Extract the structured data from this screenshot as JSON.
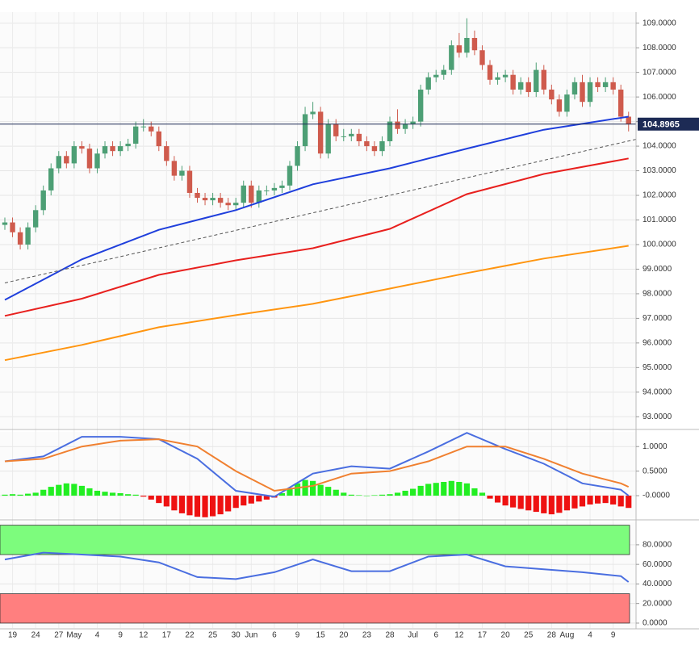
{
  "chart_data": [
    {
      "type": "candlestick",
      "open": [
        100.8,
        100.9,
        100.5,
        100.0,
        100.7,
        101.4,
        102.2,
        103.1,
        103.6,
        103.3,
        104.0,
        103.9,
        103.1,
        103.7,
        104.0,
        103.8,
        104.0,
        104.1,
        104.8,
        104.8,
        104.6,
        104.0,
        103.4,
        102.8,
        103.0,
        102.1,
        101.9,
        101.8,
        101.9,
        101.7,
        101.6,
        101.7,
        102.4,
        101.7,
        102.2,
        102.2,
        102.3,
        102.4,
        103.2,
        104.0,
        105.3,
        105.4,
        103.7,
        104.9,
        104.4,
        104.4,
        104.5,
        104.2,
        104.0,
        103.8,
        104.2,
        105.0,
        104.7,
        104.9,
        105.0,
        106.3,
        106.8,
        106.9,
        107.1,
        108.1,
        107.8,
        108.4,
        107.9,
        107.3,
        106.7,
        106.8,
        106.9,
        106.3,
        106.6,
        106.2,
        107.1,
        106.3,
        105.9,
        105.4,
        106.1,
        106.6,
        105.8,
        106.6,
        106.4,
        106.6,
        106.3,
        105.2
      ],
      "high": [
        101.1,
        101.1,
        100.7,
        100.9,
        101.6,
        102.4,
        103.3,
        103.8,
        103.8,
        104.2,
        104.2,
        104.1,
        103.9,
        104.2,
        104.2,
        104.2,
        104.3,
        105.0,
        105.1,
        105.0,
        104.8,
        104.2,
        103.6,
        103.2,
        103.2,
        102.3,
        102.1,
        102.1,
        102.1,
        101.9,
        101.9,
        102.6,
        102.6,
        102.4,
        102.4,
        102.5,
        102.6,
        103.4,
        104.2,
        105.6,
        105.8,
        105.6,
        105.1,
        105.1,
        104.7,
        104.7,
        104.7,
        104.4,
        104.2,
        104.4,
        105.2,
        105.5,
        105.1,
        105.2,
        106.5,
        107.0,
        107.1,
        107.3,
        108.3,
        108.6,
        109.2,
        108.7,
        108.1,
        107.5,
        107.0,
        107.1,
        107.1,
        106.8,
        106.8,
        107.4,
        107.3,
        106.5,
        106.1,
        106.3,
        106.8,
        106.9,
        106.8,
        106.8,
        106.8,
        106.8,
        106.5,
        105.4
      ],
      "low": [
        100.6,
        100.3,
        99.8,
        99.8,
        100.5,
        101.2,
        102.0,
        102.9,
        103.1,
        103.1,
        103.7,
        102.9,
        102.9,
        103.5,
        103.6,
        103.6,
        103.8,
        103.9,
        104.6,
        104.4,
        103.8,
        103.2,
        102.6,
        102.6,
        101.9,
        101.7,
        101.6,
        101.6,
        101.5,
        101.4,
        101.4,
        101.5,
        101.5,
        101.5,
        102.0,
        102.0,
        102.1,
        102.2,
        103.0,
        103.8,
        105.1,
        103.5,
        103.5,
        104.2,
        104.2,
        104.2,
        104.0,
        103.8,
        103.6,
        103.6,
        104.0,
        104.5,
        104.5,
        104.7,
        104.8,
        106.1,
        106.6,
        106.7,
        106.9,
        107.6,
        107.6,
        107.7,
        107.1,
        106.5,
        106.5,
        106.6,
        106.1,
        106.1,
        106.0,
        106.0,
        106.1,
        105.7,
        105.2,
        105.2,
        105.9,
        105.6,
        105.6,
        106.2,
        106.2,
        106.1,
        105.0,
        104.6
      ],
      "close": [
        100.9,
        100.5,
        100.0,
        100.7,
        101.4,
        102.2,
        103.1,
        103.6,
        103.3,
        104.0,
        103.9,
        103.1,
        103.7,
        104.0,
        103.8,
        104.0,
        104.1,
        104.8,
        104.8,
        104.6,
        104.0,
        103.4,
        102.8,
        103.0,
        102.1,
        101.9,
        101.8,
        101.9,
        101.7,
        101.6,
        101.7,
        102.4,
        101.7,
        102.2,
        102.2,
        102.3,
        102.4,
        103.2,
        104.0,
        105.3,
        105.4,
        103.7,
        104.9,
        104.4,
        104.4,
        104.5,
        104.2,
        104.0,
        103.8,
        104.2,
        105.0,
        104.7,
        104.9,
        105.0,
        106.3,
        106.8,
        106.9,
        107.1,
        108.1,
        107.8,
        108.4,
        107.9,
        107.3,
        106.7,
        106.8,
        106.9,
        106.3,
        106.6,
        106.2,
        107.1,
        106.3,
        105.9,
        105.4,
        106.1,
        106.6,
        105.8,
        106.6,
        106.4,
        106.6,
        106.3,
        105.2,
        104.9
      ],
      "up_color": "#4d9f75",
      "down_color": "#cf5b4d",
      "lines": [
        {
          "color": "#1f3fdc",
          "x": [
            0,
            10,
            20,
            30,
            40,
            50,
            60,
            70,
            81
          ],
          "values": [
            97.75,
            99.4,
            100.6,
            101.4,
            102.45,
            103.1,
            103.9,
            104.67,
            105.2
          ]
        },
        {
          "color": "#e8201e",
          "x": [
            0,
            10,
            20,
            30,
            40,
            50,
            60,
            70,
            81
          ],
          "values": [
            97.1,
            97.8,
            98.77,
            99.36,
            99.85,
            100.64,
            102.05,
            102.87,
            103.5
          ]
        },
        {
          "color": "#ff9510",
          "x": [
            0,
            10,
            20,
            30,
            40,
            50,
            60,
            70,
            81
          ],
          "values": [
            95.3,
            95.92,
            96.64,
            97.13,
            97.59,
            98.21,
            98.84,
            99.43,
            99.95
          ]
        },
        {
          "color": "#555555",
          "dashed": true,
          "x": [
            0,
            82
          ],
          "values": [
            98.44,
            104.28
          ]
        }
      ],
      "last_price": 104.8965,
      "last_color": "#1d2b55",
      "ylim": [
        92.55,
        109.45
      ],
      "yticks": [
        {
          "value": 93,
          "label": "93.0000"
        },
        {
          "value": 94,
          "label": "94.0000"
        },
        {
          "value": 95,
          "label": "95.0000"
        },
        {
          "value": 96,
          "label": "96.0000"
        },
        {
          "value": 97,
          "label": "97.0000"
        },
        {
          "value": 98,
          "label": "98.0000"
        },
        {
          "value": 99,
          "label": "99.0000"
        },
        {
          "value": 100,
          "label": "100.0000"
        },
        {
          "value": 101,
          "label": "101.0000"
        },
        {
          "value": 102,
          "label": "102.0000"
        },
        {
          "value": 103,
          "label": "103.0000"
        },
        {
          "value": 104,
          "label": "104.0000"
        },
        {
          "value": 105,
          "label": "105.0000"
        },
        {
          "value": 106,
          "label": "106.0000"
        },
        {
          "value": 107,
          "label": "107.0000"
        },
        {
          "value": 108,
          "label": "108.0000"
        },
        {
          "value": 109,
          "label": "109.0000"
        }
      ],
      "x_labels": [
        {
          "index": 1,
          "label": "19"
        },
        {
          "index": 4,
          "label": "24"
        },
        {
          "index": 7,
          "label": "27"
        },
        {
          "index": 9,
          "label": "May"
        },
        {
          "index": 12,
          "label": "4"
        },
        {
          "index": 15,
          "label": "9"
        },
        {
          "index": 18,
          "label": "12"
        },
        {
          "index": 21,
          "label": "17"
        },
        {
          "index": 24,
          "label": "22"
        },
        {
          "index": 27,
          "label": "25"
        },
        {
          "index": 30,
          "label": "30"
        },
        {
          "index": 32,
          "label": "Jun"
        },
        {
          "index": 35,
          "label": "6"
        },
        {
          "index": 38,
          "label": "9"
        },
        {
          "index": 41,
          "label": "15"
        },
        {
          "index": 44,
          "label": "20"
        },
        {
          "index": 47,
          "label": "23"
        },
        {
          "index": 50,
          "label": "28"
        },
        {
          "index": 53,
          "label": "Jul"
        },
        {
          "index": 56,
          "label": "6"
        },
        {
          "index": 59,
          "label": "12"
        },
        {
          "index": 62,
          "label": "17"
        },
        {
          "index": 65,
          "label": "20"
        },
        {
          "index": 68,
          "label": "25"
        },
        {
          "index": 71,
          "label": "28"
        },
        {
          "index": 73,
          "label": "Aug"
        },
        {
          "index": 76,
          "label": "4"
        },
        {
          "index": 79,
          "label": "9"
        }
      ]
    },
    {
      "type": "macd",
      "histogram": [
        0.02,
        0.03,
        0.02,
        0.04,
        0.06,
        0.12,
        0.18,
        0.22,
        0.25,
        0.24,
        0.2,
        0.15,
        0.1,
        0.08,
        0.06,
        0.05,
        0.03,
        0.02,
        -0.02,
        -0.08,
        -0.15,
        -0.22,
        -0.3,
        -0.36,
        -0.4,
        -0.43,
        -0.44,
        -0.42,
        -0.38,
        -0.32,
        -0.25,
        -0.2,
        -0.16,
        -0.12,
        -0.08,
        -0.04,
        0.05,
        0.15,
        0.25,
        0.32,
        0.3,
        0.22,
        0.18,
        0.12,
        0.06,
        0.02,
        0.01,
        0.0,
        0.01,
        0.02,
        0.03,
        0.06,
        0.1,
        0.14,
        0.2,
        0.24,
        0.26,
        0.28,
        0.3,
        0.28,
        0.25,
        0.15,
        0.06,
        -0.06,
        -0.14,
        -0.2,
        -0.24,
        -0.27,
        -0.3,
        -0.33,
        -0.36,
        -0.38,
        -0.35,
        -0.3,
        -0.26,
        -0.22,
        -0.18,
        -0.16,
        -0.15,
        -0.18,
        -0.22,
        -0.25
      ],
      "up_color": "#22ee22",
      "down_color": "#ee1111",
      "lines": [
        {
          "color": "#4a6ee0",
          "x": [
            0,
            5,
            10,
            15,
            20,
            25,
            30,
            35,
            40,
            45,
            50,
            55,
            60,
            65,
            70,
            75,
            80,
            81
          ],
          "values": [
            0.7,
            0.8,
            1.2,
            1.2,
            1.15,
            0.75,
            0.1,
            -0.02,
            0.45,
            0.6,
            0.55,
            0.9,
            1.28,
            0.95,
            0.65,
            0.25,
            0.12,
            0.0
          ]
        },
        {
          "color": "#f08030",
          "x": [
            0,
            5,
            10,
            15,
            20,
            25,
            30,
            35,
            40,
            45,
            50,
            55,
            60,
            65,
            70,
            75,
            80,
            81
          ],
          "values": [
            0.7,
            0.75,
            1.0,
            1.12,
            1.15,
            1.0,
            0.5,
            0.1,
            0.2,
            0.45,
            0.5,
            0.7,
            1.0,
            1.0,
            0.75,
            0.45,
            0.25,
            0.18
          ]
        }
      ],
      "ylim": [
        -0.46,
        1.3
      ],
      "yticks": [
        {
          "value": 0,
          "label": "-0.0000"
        },
        {
          "value": 0.5,
          "label": "0.5000"
        },
        {
          "value": 1,
          "label": "1.0000"
        }
      ]
    },
    {
      "type": "rsi",
      "zones": [
        {
          "from": 70,
          "to": 100,
          "color": "#7dfc7d"
        },
        {
          "from": 0,
          "to": 30,
          "color": "#ff7f7f"
        }
      ],
      "lines": [
        {
          "color": "#4a6ee0",
          "x": [
            0,
            5,
            10,
            15,
            20,
            25,
            30,
            35,
            40,
            45,
            50,
            55,
            60,
            65,
            70,
            75,
            80,
            81
          ],
          "values": [
            65,
            72,
            70,
            68,
            62,
            47,
            45,
            52,
            65,
            53,
            53,
            68,
            70,
            58,
            55,
            52,
            48,
            42
          ]
        }
      ],
      "ylim": [
        -5,
        103
      ],
      "yticks": [
        {
          "value": 0,
          "label": "0.0000"
        },
        {
          "value": 20,
          "label": "20.0000"
        },
        {
          "value": 40,
          "label": "40.0000"
        },
        {
          "value": 60,
          "label": "60.0000"
        },
        {
          "value": 80,
          "label": "80.0000"
        }
      ]
    }
  ]
}
